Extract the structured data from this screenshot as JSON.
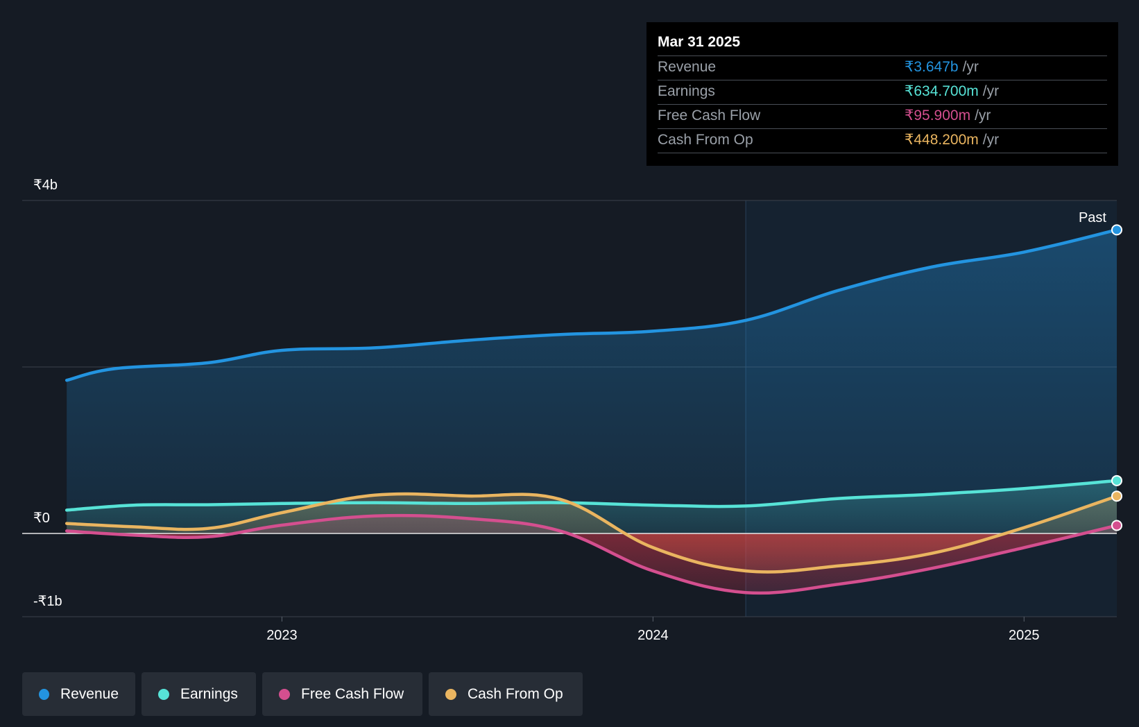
{
  "tooltip": {
    "date": "Mar 31 2025",
    "rows": [
      {
        "label": "Revenue",
        "value": "₹3.647b",
        "unit": "/yr",
        "color": "#2394e0"
      },
      {
        "label": "Earnings",
        "value": "₹634.700m",
        "unit": "/yr",
        "color": "#57e3d7"
      },
      {
        "label": "Free Cash Flow",
        "value": "₹95.900m",
        "unit": "/yr",
        "color": "#d44f8f"
      },
      {
        "label": "Cash From Op",
        "value": "₹448.200m",
        "unit": "/yr",
        "color": "#eab560"
      }
    ]
  },
  "legend": [
    {
      "label": "Revenue",
      "color": "#2394e0"
    },
    {
      "label": "Earnings",
      "color": "#57e3d7"
    },
    {
      "label": "Free Cash Flow",
      "color": "#d44f8f"
    },
    {
      "label": "Cash From Op",
      "color": "#eab560"
    }
  ],
  "chart_data": {
    "type": "line",
    "title": "",
    "xlabel": "",
    "ylabel": "",
    "ylim": [
      -1.0,
      4.0
    ],
    "xlim": [
      2022.3,
      2025.25
    ],
    "y_unit": "₹ billions",
    "y_tick_values": [
      4.0,
      2.0,
      0.0,
      -1.0
    ],
    "y_tick_labels": [
      "₹4b",
      "",
      "₹0",
      "-₹1b"
    ],
    "x_tick_values": [
      2023.0,
      2024.0,
      2025.0
    ],
    "x_tick_labels": [
      "2023",
      "2024",
      "2025"
    ],
    "past_label": "Past",
    "past_start": 2024.25,
    "series": [
      {
        "name": "Revenue",
        "color": "#2394e0",
        "x": [
          2022.42,
          2022.55,
          2022.8,
          2023.0,
          2023.25,
          2023.5,
          2023.75,
          2024.0,
          2024.25,
          2024.5,
          2024.75,
          2025.0,
          2025.25
        ],
        "values": [
          1.84,
          1.98,
          2.05,
          2.2,
          2.23,
          2.32,
          2.39,
          2.43,
          2.56,
          2.92,
          3.2,
          3.38,
          3.647
        ]
      },
      {
        "name": "Earnings",
        "color": "#57e3d7",
        "x": [
          2022.42,
          2022.6,
          2022.8,
          2023.0,
          2023.25,
          2023.5,
          2023.75,
          2024.0,
          2024.25,
          2024.5,
          2024.75,
          2025.0,
          2025.25
        ],
        "values": [
          0.28,
          0.34,
          0.345,
          0.36,
          0.37,
          0.36,
          0.37,
          0.34,
          0.33,
          0.42,
          0.47,
          0.54,
          0.6347
        ]
      },
      {
        "name": "Free Cash Flow",
        "color": "#d44f8f",
        "x": [
          2022.42,
          2022.6,
          2022.8,
          2023.0,
          2023.25,
          2023.5,
          2023.75,
          2024.0,
          2024.25,
          2024.5,
          2024.75,
          2025.0,
          2025.25
        ],
        "values": [
          0.03,
          -0.02,
          -0.04,
          0.1,
          0.21,
          0.18,
          0.03,
          -0.45,
          -0.71,
          -0.61,
          -0.42,
          -0.17,
          0.0959
        ]
      },
      {
        "name": "Cash From Op",
        "color": "#eab560",
        "x": [
          2022.42,
          2022.6,
          2022.8,
          2023.0,
          2023.25,
          2023.5,
          2023.75,
          2024.0,
          2024.25,
          2024.5,
          2024.75,
          2025.0,
          2025.25
        ],
        "values": [
          0.12,
          0.08,
          0.06,
          0.25,
          0.46,
          0.45,
          0.41,
          -0.17,
          -0.45,
          -0.39,
          -0.24,
          0.07,
          0.4482
        ]
      }
    ]
  }
}
